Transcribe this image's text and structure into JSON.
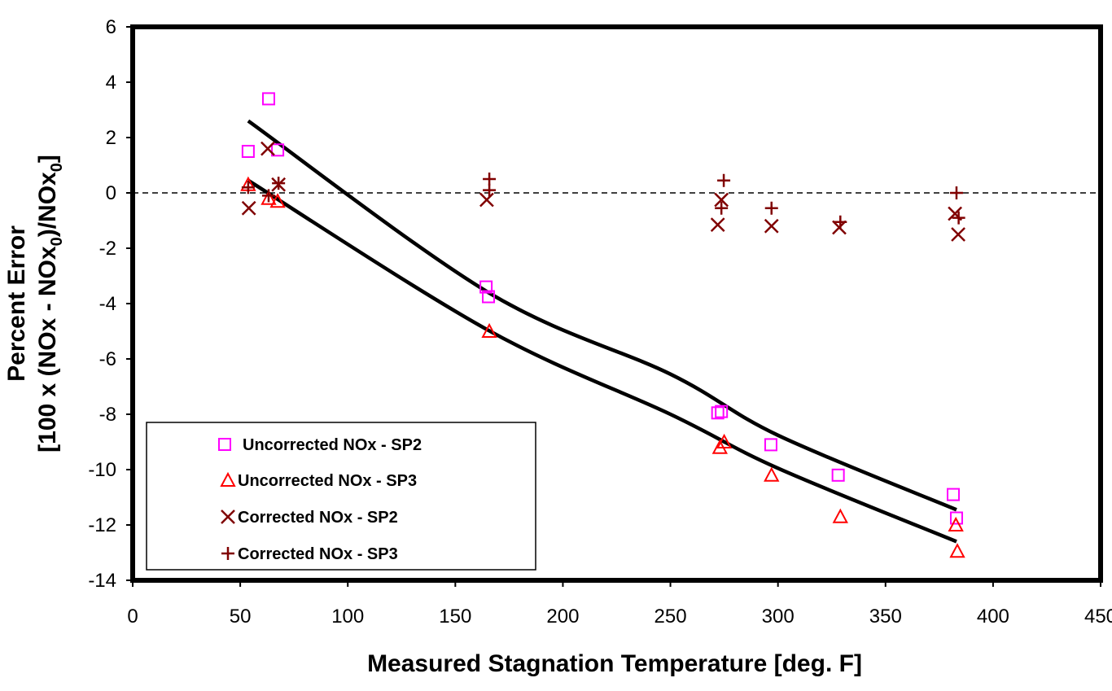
{
  "chart_data": {
    "type": "scatter",
    "title": "",
    "xlabel": "Measured Stagnation Temperature [deg. F]",
    "ylabel_line1": "Percent Error",
    "ylabel_line2_parts": [
      "[100 x (NOx - NOx",
      "0",
      ")/NOx",
      "0",
      "]"
    ],
    "xlim": [
      0,
      450
    ],
    "ylim": [
      -14,
      6
    ],
    "xticks": [
      0,
      50,
      100,
      150,
      200,
      250,
      300,
      350,
      400,
      450
    ],
    "yticks": [
      6,
      4,
      2,
      0,
      -2,
      -4,
      -6,
      -8,
      -10,
      -12,
      -14
    ],
    "grid": false,
    "zero_line": "dashed",
    "legend_position": "bottom-left",
    "series": [
      {
        "name": "Uncorrected NOx - SP2",
        "marker": "square",
        "color": "#ff00ff",
        "x": [
          53.7,
          63.2,
          67.4,
          164.3,
          165.4,
          272,
          273.7,
          296.7,
          328,
          381.5,
          383
        ],
        "y": [
          1.5,
          3.4,
          1.55,
          -3.4,
          -3.75,
          -7.95,
          -7.9,
          -9.1,
          -10.2,
          -10.9,
          -11.75
        ]
      },
      {
        "name": "Uncorrected NOx - SP3",
        "marker": "triangle",
        "color": "#ff0000",
        "x": [
          53.7,
          63.2,
          67.4,
          165.8,
          273,
          275,
          297,
          329,
          382.7,
          383.4
        ],
        "y": [
          0.3,
          -0.2,
          -0.3,
          -5.0,
          -9.2,
          -9.0,
          -10.2,
          -11.7,
          -12.0,
          -12.95
        ]
      },
      {
        "name": "Corrected NOx - SP2",
        "marker": "x",
        "color": "#800000",
        "x": [
          54,
          62.8,
          67.8,
          164.6,
          272,
          273.7,
          297,
          328.5,
          382.3,
          383.8
        ],
        "y": [
          -0.55,
          1.6,
          0.3,
          -0.25,
          -1.15,
          -0.25,
          -1.2,
          -1.25,
          -0.75,
          -1.5
        ]
      },
      {
        "name": "Corrected NOx - SP3",
        "marker": "plus",
        "color": "#800000",
        "x": [
          53.7,
          63.2,
          67.8,
          165.8,
          165.8,
          274.8,
          273.7,
          297,
          329,
          383,
          384
        ],
        "y": [
          0.2,
          -0.1,
          0.35,
          0.5,
          0.1,
          0.45,
          -0.55,
          -0.55,
          -1.05,
          0.0,
          -0.9
        ]
      }
    ],
    "trendlines": [
      {
        "color": "#000000",
        "x": [
          53.7,
          165.4,
          250,
          300,
          383
        ],
        "y": [
          2.6,
          -3.6,
          -6.55,
          -8.76,
          -11.45
        ]
      },
      {
        "color": "#000000",
        "x": [
          53.7,
          165,
          250,
          300,
          383
        ],
        "y": [
          0.45,
          -4.95,
          -8.0,
          -9.95,
          -12.6
        ]
      }
    ]
  }
}
